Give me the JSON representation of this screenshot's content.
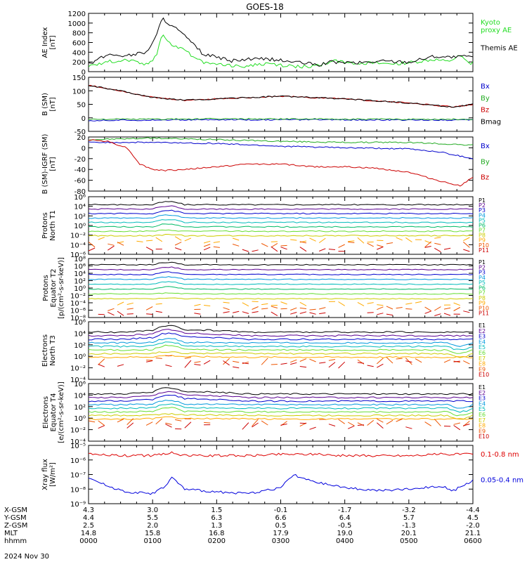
{
  "title": "GOES-18",
  "chart_data": [
    {
      "type": "line",
      "ylabel": "AE Index\n[nT]",
      "ylim": [
        0,
        1200
      ],
      "yscale": "linear",
      "yticks": [
        "0",
        "200",
        "400",
        "600",
        "800",
        "1000",
        "1200"
      ],
      "series": [
        {
          "name": "Kyoto\nproxy AE",
          "color": "#22dd22",
          "x": [
            0,
            0.3,
            0.6,
            0.9,
            1.05,
            1.15,
            1.25,
            1.4,
            1.5,
            1.65,
            1.8,
            2.0,
            2.2,
            2.5,
            2.8,
            3.2,
            3.6,
            3.8,
            4.2,
            4.6,
            5.0,
            5.4,
            5.6,
            5.8,
            5.95,
            6.0
          ],
          "values": [
            120,
            200,
            250,
            150,
            300,
            800,
            600,
            500,
            480,
            280,
            180,
            170,
            120,
            120,
            160,
            100,
            120,
            220,
            180,
            160,
            180,
            250,
            200,
            320,
            150,
            200
          ]
        },
        {
          "name": "Themis AE",
          "color": "#000000",
          "x": [
            0,
            0.3,
            0.6,
            0.9,
            1.05,
            1.15,
            1.3,
            1.45,
            1.6,
            1.8,
            2.0,
            2.2,
            2.5,
            2.8,
            3.2,
            3.6,
            3.8,
            4.2,
            4.6,
            5.0,
            5.4,
            5.6,
            5.8,
            5.95,
            6.0
          ],
          "values": [
            150,
            350,
            330,
            400,
            700,
            1100,
            950,
            800,
            600,
            350,
            300,
            220,
            250,
            260,
            200,
            140,
            200,
            180,
            220,
            200,
            320,
            300,
            300,
            330,
            280
          ]
        }
      ]
    },
    {
      "type": "line",
      "ylabel": "B (SM)\n[nT]",
      "ylim": [
        -50,
        150
      ],
      "yscale": "linear",
      "yticks": [
        "-50",
        "0",
        "50",
        "100",
        "150"
      ],
      "series": [
        {
          "name": "Bx",
          "color": "#0000cc",
          "x": [
            0,
            1,
            2,
            3,
            4,
            5,
            6
          ],
          "values": [
            -10,
            -8,
            -7,
            -7,
            -7,
            -8,
            -8
          ]
        },
        {
          "name": "By",
          "color": "#22aa22",
          "x": [
            0,
            1,
            2,
            3,
            4,
            5,
            6
          ],
          "values": [
            -5,
            -5,
            -4,
            -4,
            -5,
            -5,
            -5
          ]
        },
        {
          "name": "Bz",
          "color": "#cc0000",
          "x": [
            0,
            0.5,
            1,
            1.5,
            2,
            3,
            4,
            5,
            5.7,
            6
          ],
          "values": [
            120,
            100,
            75,
            65,
            70,
            80,
            70,
            55,
            40,
            50
          ]
        },
        {
          "name": "Bmag",
          "color": "#000000",
          "x": [
            0,
            0.5,
            1,
            1.5,
            2,
            3,
            4,
            5,
            5.7,
            6
          ],
          "values": [
            120,
            100,
            75,
            65,
            70,
            80,
            70,
            55,
            40,
            50
          ]
        }
      ]
    },
    {
      "type": "line",
      "ylabel": "B (SM)-IGRF (SM)\n[nT]",
      "ylim": [
        -80,
        20
      ],
      "yscale": "linear",
      "yticks": [
        "-80",
        "-60",
        "-40",
        "-20",
        "0",
        "20"
      ],
      "series": [
        {
          "name": "Bx",
          "color": "#0000cc",
          "x": [
            0,
            1,
            2,
            3,
            4,
            5,
            5.5,
            6
          ],
          "values": [
            10,
            10,
            8,
            3,
            0,
            -2,
            -8,
            -20
          ]
        },
        {
          "name": "By",
          "color": "#22aa22",
          "x": [
            0,
            1,
            2,
            3,
            4,
            5,
            6
          ],
          "values": [
            15,
            18,
            15,
            12,
            10,
            10,
            5
          ]
        },
        {
          "name": "Bz",
          "color": "#cc0000",
          "x": [
            0,
            0.3,
            0.6,
            0.8,
            1.0,
            1.2,
            1.5,
            2.0,
            2.5,
            3.0,
            3.5,
            4.0,
            4.5,
            5.0,
            5.5,
            5.8,
            6.0
          ],
          "values": [
            15,
            12,
            0,
            -30,
            -40,
            -42,
            -40,
            -35,
            -30,
            -30,
            -35,
            -35,
            -38,
            -45,
            -62,
            -70,
            -55
          ]
        }
      ]
    },
    {
      "type": "line",
      "ylabel": "Protons\nNorth T1",
      "ylim": [
        -7,
        6
      ],
      "yscale": "log",
      "yticks": [
        "10⁻⁶",
        "10⁻⁴",
        "10⁻²",
        "10⁰",
        "10²",
        "10⁴",
        "10⁶"
      ],
      "legend": [
        "P1",
        "P2",
        "P3",
        "P4",
        "P5",
        "P6",
        "P7",
        "P8",
        "P9",
        "P10",
        "P11"
      ]
    },
    {
      "type": "line",
      "ylabel": "Protons\nEquator T2\n[p/(cm²-s-sr-keV)]",
      "ylim": [
        -9,
        8
      ],
      "yscale": "log",
      "yticks": [
        "10⁻⁸",
        "10⁻⁶",
        "10⁻⁴",
        "10⁻²",
        "10⁰",
        "10²",
        "10⁴",
        "10⁶",
        "10⁸"
      ],
      "legend": [
        "P1",
        "P2",
        "P3",
        "P4",
        "P5",
        "P6",
        "P7",
        "P8",
        "P9",
        "P10",
        "P11"
      ]
    },
    {
      "type": "line",
      "ylabel": "Electrons\nNorth T3",
      "ylim": [
        -4,
        6
      ],
      "yscale": "log",
      "yticks": [
        "10⁻⁴",
        "10⁻²",
        "10⁰",
        "10²",
        "10⁴",
        "10⁶"
      ],
      "legend": [
        "E1",
        "E2",
        "E3",
        "E4",
        "E5",
        "E6",
        "E7",
        "E8",
        "E9",
        "E10"
      ]
    },
    {
      "type": "line",
      "ylabel": "Electrons\nEquator T4\n[e/(cm²-s-sr-keV)]",
      "ylim": [
        -4,
        6
      ],
      "yscale": "log",
      "yticks": [
        "10⁻⁴",
        "10⁻²",
        "10⁰",
        "10²",
        "10⁴",
        "10⁶"
      ],
      "legend": [
        "E1",
        "E2",
        "E3",
        "E4",
        "E5",
        "E6",
        "E7",
        "E8",
        "E9",
        "E10"
      ]
    },
    {
      "type": "line",
      "ylabel": "Xray flux\n[W/m²]",
      "ylim": [
        -9,
        -5
      ],
      "yscale": "log",
      "yticks": [
        "10⁻⁹",
        "10⁻⁸",
        "10⁻⁷",
        "10⁻⁶",
        "10⁻⁵"
      ],
      "series": [
        {
          "name": "0.1-0.8 nm",
          "color": "#dd0000",
          "x": [
            0,
            0.5,
            1.0,
            1.3,
            1.5,
            2.0,
            2.5,
            3.0,
            3.5,
            4.0,
            4.5,
            5.0,
            5.5,
            6.0
          ],
          "values": [
            -5.6,
            -5.7,
            -5.7,
            -5.5,
            -5.7,
            -5.7,
            -5.7,
            -5.6,
            -5.6,
            -5.7,
            -5.7,
            -5.7,
            -5.6,
            -5.6
          ]
        },
        {
          "name": "0.05-0.4 nm",
          "color": "#0000dd",
          "x": [
            0,
            0.3,
            0.6,
            1.0,
            1.2,
            1.3,
            1.5,
            2.0,
            2.5,
            3.0,
            3.2,
            3.5,
            4.0,
            4.5,
            5.0,
            5.5,
            5.7,
            6.0
          ],
          "values": [
            -7.2,
            -7.8,
            -8.2,
            -8.3,
            -7.8,
            -7.2,
            -8.0,
            -8.2,
            -8.3,
            -7.9,
            -7.0,
            -7.5,
            -7.9,
            -8.1,
            -8.0,
            -7.8,
            -8.1,
            -7.4
          ]
        }
      ]
    }
  ],
  "xaxis": {
    "rows": [
      {
        "label": "X-GSM",
        "values": [
          "4.3",
          "3.0",
          "1.5",
          "-0.1",
          "-1.7",
          "-3.2",
          "-4.4"
        ]
      },
      {
        "label": "Y-GSM",
        "values": [
          "4.4",
          "5.5",
          "6.3",
          "6.6",
          "6.4",
          "5.7",
          "4.5"
        ]
      },
      {
        "label": "Z-GSM",
        "values": [
          "2.5",
          "2.0",
          "1.3",
          "0.5",
          "-0.5",
          "-1.3",
          "-2.0"
        ]
      },
      {
        "label": "MLT",
        "values": [
          "14.8",
          "15.8",
          "16.8",
          "17.9",
          "19.0",
          "20.1",
          "21.1"
        ]
      },
      {
        "label": "hhmm",
        "values": [
          "0000",
          "0100",
          "0200",
          "0300",
          "0400",
          "0500",
          "0600"
        ]
      }
    ],
    "date": "2024 Nov 30"
  },
  "colors": {
    "T1": [
      "#000000",
      "#5a0090",
      "#0000cc",
      "#0099dd",
      "#00bbbb",
      "#00bb66",
      "#66dd33",
      "#cccc00",
      "#ffaa00",
      "#ee5500",
      "#cc0000"
    ],
    "T2": [
      "#000000",
      "#5a0090",
      "#0000cc",
      "#0099dd",
      "#00bbbb",
      "#00bb66",
      "#66dd33",
      "#cccc00",
      "#ffaa00",
      "#ee5500",
      "#cc0000"
    ],
    "T3": [
      "#000000",
      "#5a0090",
      "#0000cc",
      "#0099dd",
      "#00bbbb",
      "#66dd33",
      "#cccc00",
      "#ffaa00",
      "#ee5500",
      "#cc0000"
    ]
  }
}
